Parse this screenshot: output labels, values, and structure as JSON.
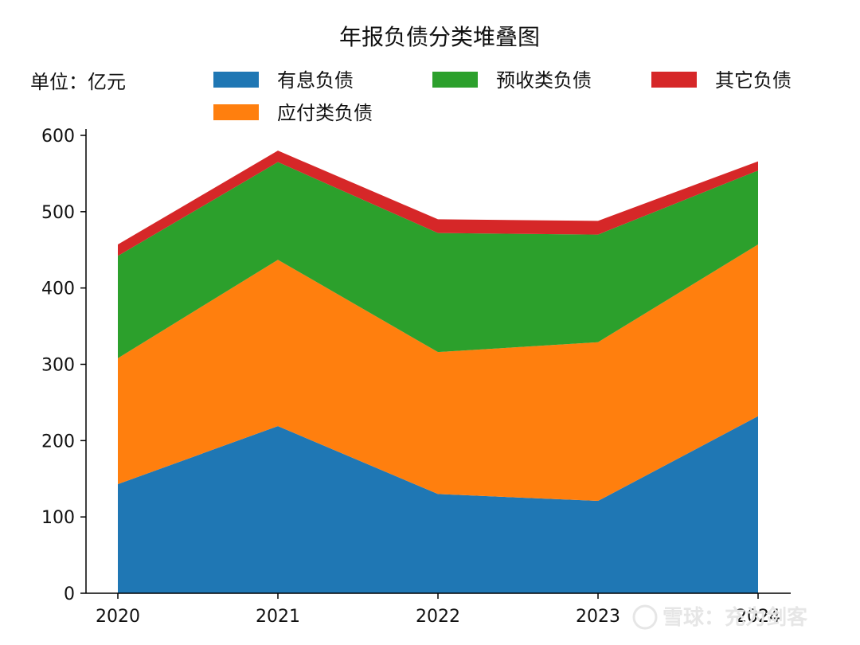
{
  "chart_data": {
    "type": "area",
    "title": "年报负债分类堆叠图",
    "unit_label": "单位：亿元",
    "x": [
      "2020",
      "2021",
      "2022",
      "2023",
      "2024"
    ],
    "ylim": [
      0,
      600
    ],
    "yticks": [
      0,
      100,
      200,
      300,
      400,
      500,
      600
    ],
    "stacked": true,
    "grid": false,
    "legend_position": "top",
    "series": [
      {
        "name": "有息负债",
        "color": "#1f77b4",
        "values": [
          143,
          219,
          130,
          121,
          232
        ]
      },
      {
        "name": "应付类负债",
        "color": "#ff7f0e",
        "values": [
          165,
          218,
          186,
          208,
          225
        ]
      },
      {
        "name": "预收类负债",
        "color": "#2ca02c",
        "values": [
          134,
          128,
          156,
          141,
          97
        ]
      },
      {
        "name": "其它负债",
        "color": "#d62728",
        "values": [
          15,
          15,
          18,
          18,
          12
        ]
      }
    ]
  },
  "watermark": "雪球：充为剑客"
}
